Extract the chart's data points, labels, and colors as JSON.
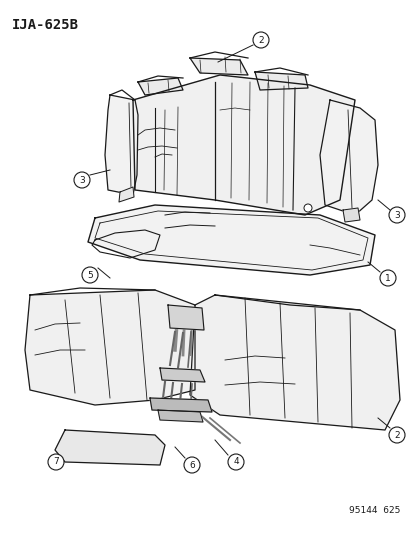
{
  "title": "IJA-625B",
  "footer": "95144  625",
  "bg": "#ffffff",
  "lc": "#1a1a1a",
  "fc": "#f8f8f8",
  "fig_w": 4.14,
  "fig_h": 5.33,
  "dpi": 100
}
